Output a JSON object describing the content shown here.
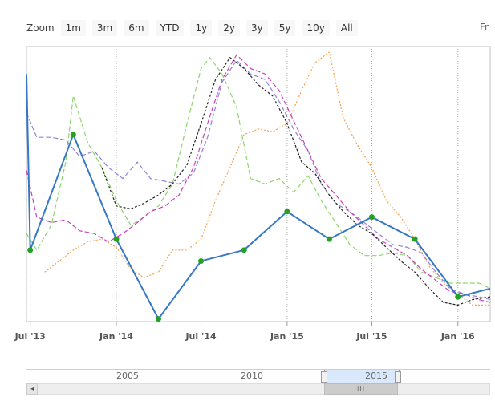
{
  "zoom": {
    "label": "Zoom",
    "buttons": [
      "1m",
      "3m",
      "6m",
      "YTD",
      "1y",
      "2y",
      "3y",
      "5y",
      "10y",
      "All"
    ],
    "from_label": "Fr"
  },
  "navigator": {
    "labels": [
      "2005",
      "2010",
      "2015"
    ],
    "grip": "III",
    "arrow": "◂"
  },
  "colors": {
    "main": "#3578c4",
    "markers": "#22a122",
    "dashed_purple": "#8f84d6",
    "dashed_magenta": "#c93fbf",
    "dashed_green": "#8fd46d",
    "dashed_black": "#222222",
    "dashed_orange": "#f5a04b"
  },
  "chart_data": {
    "type": "line",
    "x_tick_labels": [
      "Jul '13",
      "Jan '14",
      "Jul '14",
      "Jan '15",
      "Jul '15",
      "Jan '16"
    ],
    "x_range": [
      "2013-06-23",
      "2016-03-10"
    ],
    "y_range": [
      0,
      100
    ],
    "grid": "vertical dotted at x ticks",
    "series": [
      {
        "style": "solid-markers",
        "x": [
          "2013-06-23",
          "2013-07-01",
          "2013-10-01",
          "2014-01-01",
          "2014-04-01",
          "2014-07-01",
          "2014-10-01",
          "2015-01-01",
          "2015-04-01",
          "2015-07-01",
          "2015-10-01",
          "2016-01-01",
          "2016-03-10"
        ],
        "y": [
          90,
          26,
          68,
          30,
          1,
          22,
          26,
          40,
          30,
          38,
          30,
          9,
          12
        ],
        "markers": [
          false,
          true,
          true,
          true,
          true,
          true,
          true,
          true,
          true,
          true,
          true,
          true,
          false
        ]
      },
      {
        "style": "dashed-purple",
        "x": [
          "2013-06-23",
          "2013-07-15",
          "2013-08-15",
          "2013-09-15",
          "2013-10-15",
          "2013-11-15",
          "2013-12-15",
          "2014-01-15",
          "2014-02-15",
          "2014-03-15",
          "2014-04-15",
          "2014-05-15",
          "2014-06-15",
          "2014-07-15",
          "2014-08-15",
          "2014-09-15",
          "2014-10-15",
          "2014-11-15",
          "2014-12-15",
          "2015-01-15",
          "2015-02-15",
          "2015-03-15",
          "2015-04-15",
          "2015-05-15",
          "2015-06-15",
          "2015-07-15",
          "2015-08-15",
          "2015-09-15",
          "2015-10-15",
          "2015-11-15",
          "2015-12-15",
          "2016-01-15",
          "2016-02-15",
          "2016-03-10"
        ],
        "y": [
          76,
          67,
          67,
          66,
          60,
          62,
          56,
          52,
          58,
          52,
          51,
          50,
          54,
          67,
          87,
          95,
          90,
          88,
          80,
          70,
          62,
          50,
          43,
          40,
          36,
          32,
          28,
          27,
          25,
          18,
          12,
          10,
          9,
          8
        ]
      },
      {
        "style": "dashed-magenta",
        "x": [
          "2013-06-23",
          "2013-07-15",
          "2013-08-15",
          "2013-09-15",
          "2013-10-15",
          "2013-11-15",
          "2013-12-15",
          "2014-01-15",
          "2014-02-15",
          "2014-03-15",
          "2014-04-15",
          "2014-05-15",
          "2014-06-15",
          "2014-07-15",
          "2014-08-15",
          "2014-09-15",
          "2014-10-15",
          "2014-11-15",
          "2014-12-15",
          "2015-01-15",
          "2015-02-15",
          "2015-03-15",
          "2015-04-15",
          "2015-05-15",
          "2015-06-15",
          "2015-07-15",
          "2015-08-15",
          "2015-09-15",
          "2015-10-15",
          "2015-11-15",
          "2015-12-15",
          "2016-01-15",
          "2016-02-15",
          "2016-03-10"
        ],
        "y": [
          55,
          38,
          36,
          37,
          33,
          32,
          29,
          32,
          36,
          40,
          42,
          46,
          56,
          72,
          88,
          97,
          92,
          90,
          84,
          73,
          62,
          52,
          46,
          40,
          35,
          30,
          27,
          24,
          19,
          15,
          11,
          10,
          8,
          7
        ]
      },
      {
        "style": "dashed-green",
        "x": [
          "2013-06-23",
          "2013-07-15",
          "2013-08-15",
          "2013-09-15",
          "2013-10-01",
          "2013-11-01",
          "2013-12-01",
          "2014-01-01",
          "2014-02-01",
          "2014-03-01",
          "2014-04-01",
          "2014-05-01",
          "2014-06-01",
          "2014-07-01",
          "2014-07-20",
          "2014-08-15",
          "2014-09-15",
          "2014-10-15",
          "2014-11-15",
          "2014-12-15",
          "2015-01-15",
          "2015-02-15",
          "2015-03-15",
          "2015-04-15",
          "2015-05-15",
          "2015-06-15",
          "2015-07-15",
          "2015-08-15",
          "2015-09-15",
          "2015-10-15",
          "2015-11-15",
          "2015-12-15",
          "2016-01-15",
          "2016-02-15",
          "2016-03-10"
        ],
        "y": [
          32,
          26,
          35,
          58,
          82,
          65,
          56,
          44,
          35,
          38,
          42,
          50,
          72,
          92,
          96,
          90,
          78,
          52,
          50,
          52,
          47,
          53,
          44,
          36,
          28,
          24,
          24,
          25,
          24,
          18,
          16,
          14,
          14,
          14,
          12
        ]
      },
      {
        "style": "dashed-black",
        "x": [
          "2013-12-01",
          "2014-01-01",
          "2014-02-01",
          "2014-03-01",
          "2014-04-01",
          "2014-05-01",
          "2014-06-01",
          "2014-07-01",
          "2014-08-01",
          "2014-09-01",
          "2014-10-01",
          "2014-11-01",
          "2014-12-01",
          "2015-01-01",
          "2015-02-01",
          "2015-03-01",
          "2015-04-01",
          "2015-05-01",
          "2015-06-01",
          "2015-07-01",
          "2015-08-01",
          "2015-09-01",
          "2015-10-01",
          "2015-11-01",
          "2015-12-01",
          "2016-01-01",
          "2016-02-01",
          "2016-03-10"
        ],
        "y": [
          56,
          42,
          41,
          43,
          46,
          50,
          57,
          72,
          88,
          96,
          92,
          86,
          82,
          72,
          58,
          54,
          46,
          40,
          35,
          32,
          27,
          22,
          18,
          12,
          7,
          6,
          8,
          9
        ]
      },
      {
        "style": "dotted-orange",
        "x": [
          "2013-08-01",
          "2013-09-01",
          "2013-10-01",
          "2013-11-01",
          "2013-12-01",
          "2014-01-01",
          "2014-02-01",
          "2014-03-01",
          "2014-04-01",
          "2014-05-01",
          "2014-06-01",
          "2014-07-01",
          "2014-08-01",
          "2014-09-01",
          "2014-10-01",
          "2014-11-01",
          "2014-12-01",
          "2015-01-01",
          "2015-02-01",
          "2015-03-01",
          "2015-04-01",
          "2015-05-01",
          "2015-06-01",
          "2015-07-01",
          "2015-08-01",
          "2015-09-01",
          "2015-10-01",
          "2015-11-01",
          "2015-12-01",
          "2016-01-01",
          "2016-02-01",
          "2016-03-10"
        ],
        "y": [
          18,
          22,
          26,
          29,
          30,
          27,
          19,
          16,
          18,
          26,
          26,
          30,
          44,
          56,
          68,
          70,
          69,
          72,
          84,
          94,
          98,
          74,
          64,
          56,
          44,
          38,
          30,
          20,
          14,
          10,
          6,
          6
        ]
      }
    ]
  }
}
